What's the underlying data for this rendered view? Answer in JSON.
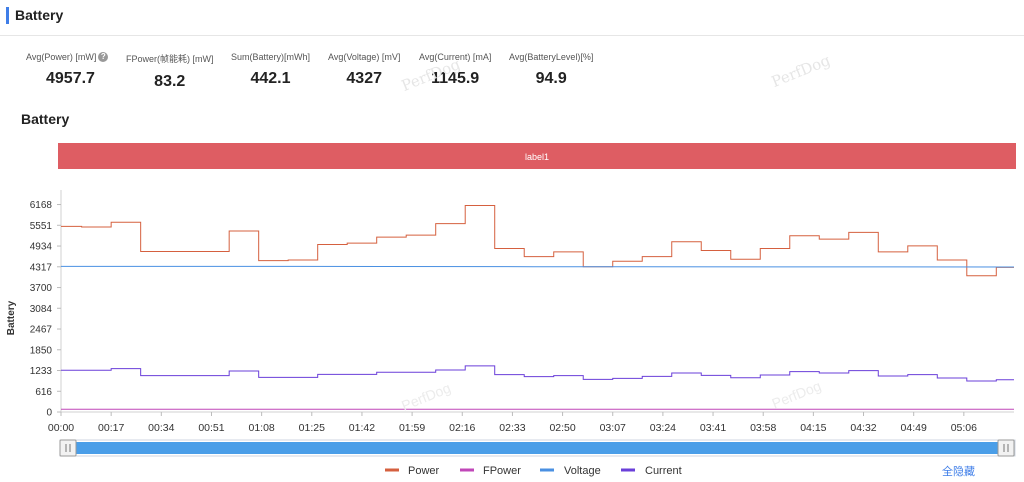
{
  "header": {
    "title": "Battery"
  },
  "metrics": [
    {
      "label": "Avg(Power) [mW]",
      "value": "4957.7",
      "help": "?"
    },
    {
      "label": "FPower(帧能耗) [mW]",
      "value": "83.2"
    },
    {
      "label": "Sum(Battery)[mWh]",
      "value": "442.1"
    },
    {
      "label": "Avg(Voltage) [mV]",
      "value": "4327"
    },
    {
      "label": "Avg(Current) [mA]",
      "value": "1145.9"
    },
    {
      "label": "Avg(BatteryLevel)[%]",
      "value": "94.9"
    }
  ],
  "section_title": "Battery",
  "watermark": "PerfDog",
  "hide_all": "全隐藏",
  "chart_data": {
    "type": "line",
    "label_band": "label1",
    "ylabel": "Battery",
    "yticks": [
      0,
      616,
      1233,
      1850,
      2467,
      3084,
      3700,
      4317,
      4934,
      5551,
      6168
    ],
    "ylim": [
      0,
      6600
    ],
    "xlim": [
      0,
      323
    ],
    "xticks": [
      "00:00",
      "00:17",
      "00:34",
      "00:51",
      "01:08",
      "01:25",
      "01:42",
      "01:59",
      "02:16",
      "02:33",
      "02:50",
      "03:07",
      "03:24",
      "03:41",
      "03:58",
      "04:15",
      "04:32",
      "04:49",
      "05:06"
    ],
    "series": [
      {
        "name": "Power",
        "color": "#d5603f",
        "step": true,
        "x": [
          0,
          7,
          17,
          27,
          47,
          57,
          67,
          77,
          87,
          97,
          107,
          117,
          127,
          137,
          147,
          157,
          167,
          177,
          187,
          197,
          207,
          217,
          227,
          237,
          247,
          257,
          267,
          277,
          287,
          297,
          307,
          317
        ],
        "y": [
          5520,
          5500,
          5640,
          4770,
          4770,
          5380,
          4500,
          4520,
          4980,
          5020,
          5200,
          5260,
          5600,
          6140,
          4860,
          4620,
          4760,
          4320,
          4480,
          4620,
          5060,
          4800,
          4540,
          4860,
          5240,
          5140,
          5340,
          4760,
          4940,
          4520,
          4050,
          4300
        ]
      },
      {
        "name": "FPower",
        "color": "#c047b8",
        "step": true,
        "x": [
          0,
          323
        ],
        "y": [
          83,
          83
        ]
      },
      {
        "name": "Voltage",
        "color": "#4a90e2",
        "step": false,
        "x": [
          0,
          80,
          160,
          240,
          323
        ],
        "y": [
          4330,
          4328,
          4320,
          4315,
          4312
        ]
      },
      {
        "name": "Current",
        "color": "#6a3fd9",
        "step": true,
        "x": [
          0,
          17,
          27,
          47,
          57,
          67,
          87,
          107,
          127,
          137,
          147,
          157,
          167,
          177,
          187,
          197,
          207,
          217,
          227,
          237,
          247,
          257,
          267,
          277,
          287,
          297,
          307,
          317
        ],
        "y": [
          1240,
          1290,
          1080,
          1080,
          1220,
          1030,
          1120,
          1180,
          1250,
          1370,
          1110,
          1050,
          1080,
          970,
          1000,
          1060,
          1160,
          1090,
          1020,
          1100,
          1200,
          1160,
          1230,
          1070,
          1110,
          1010,
          920,
          960
        ]
      }
    ]
  }
}
